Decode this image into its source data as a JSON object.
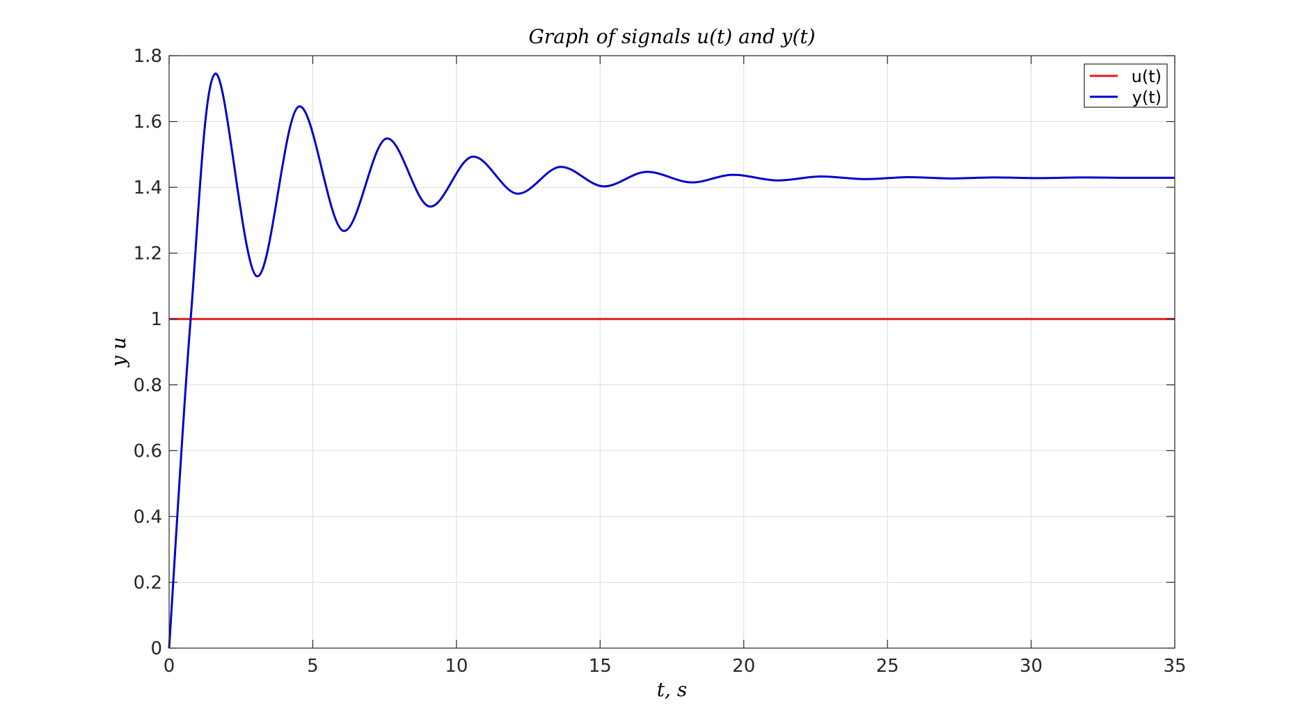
{
  "chart_data": {
    "type": "line",
    "title": "Graph of signals u(t) and y(t)",
    "xlabel": "t, s",
    "ylabel": "y u",
    "xlim": [
      0,
      35
    ],
    "ylim": [
      0,
      1.8
    ],
    "xticks": [
      0,
      5,
      10,
      15,
      20,
      25,
      30,
      35
    ],
    "xtick_labels": [
      "0",
      "5",
      "10",
      "15",
      "20",
      "25",
      "30",
      "35"
    ],
    "yticks": [
      0,
      0.2,
      0.4,
      0.6,
      0.8,
      1.0,
      1.2,
      1.4,
      1.6,
      1.8
    ],
    "ytick_labels": [
      "0",
      "0.2",
      "0.4",
      "0.6",
      "0.8",
      "1",
      "1.2",
      "1.4",
      "1.6",
      "1.8"
    ],
    "grid": true,
    "legend_position": "top-right",
    "series": [
      {
        "name": "u(t)",
        "color": "#e41a1c",
        "x": [
          0,
          35
        ],
        "y": [
          1,
          1
        ]
      },
      {
        "name": "y(t)",
        "color": "#0000cc",
        "x": [
          0,
          0.75,
          1.6,
          3.05,
          4.5,
          6.05,
          7.55,
          9.05,
          10.55,
          12.1,
          13.6,
          15.1,
          16.6,
          18.15,
          19.6,
          21.15,
          22.65,
          24.2,
          25.7,
          27.2,
          28.7,
          30.25,
          31.75,
          33.3,
          35
        ],
        "y": [
          0,
          1.0,
          1.745,
          1.13,
          1.645,
          1.268,
          1.548,
          1.342,
          1.493,
          1.381,
          1.462,
          1.403,
          1.447,
          1.415,
          1.438,
          1.421,
          1.433,
          1.425,
          1.431,
          1.427,
          1.43,
          1.428,
          1.43,
          1.429,
          1.429
        ]
      }
    ]
  }
}
